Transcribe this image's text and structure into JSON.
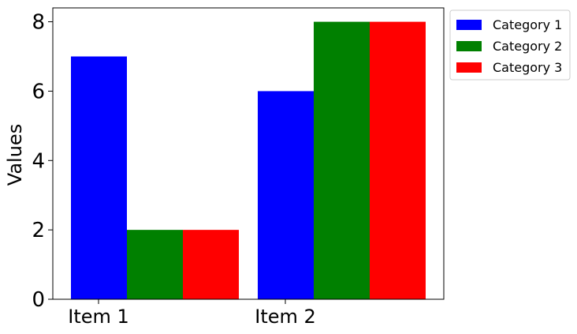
{
  "chart_data": {
    "type": "bar",
    "categories": [
      "Item 1",
      "Item 2"
    ],
    "series": [
      {
        "name": "Category 1",
        "values": [
          7,
          6
        ],
        "color": "#0000ff"
      },
      {
        "name": "Category 2",
        "values": [
          2,
          8
        ],
        "color": "#008000"
      },
      {
        "name": "Category 3",
        "values": [
          2,
          8
        ],
        "color": "#ff0000"
      }
    ],
    "xlabel": "",
    "ylabel": "Values",
    "ylim": [
      0,
      8.4
    ],
    "yticks": [
      0,
      2,
      4,
      6,
      8
    ],
    "grid": false,
    "legend_position": "outside-top-right"
  }
}
